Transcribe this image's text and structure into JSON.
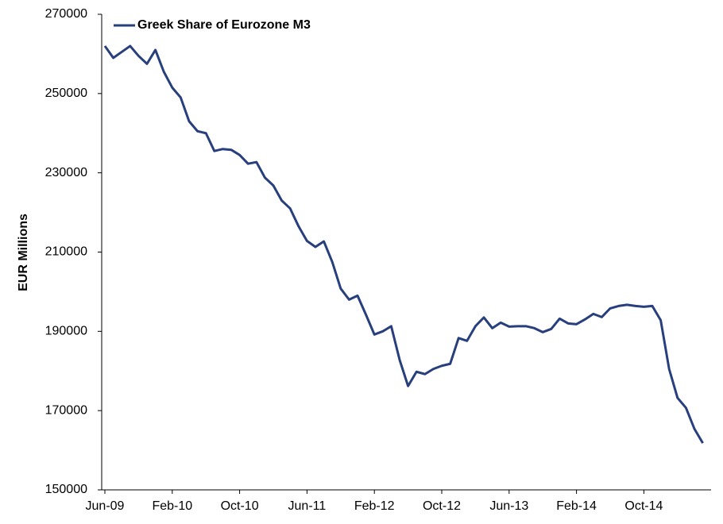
{
  "chart_data": {
    "type": "line",
    "y_label": "EUR Millions",
    "categories": [
      "Jun-09",
      null,
      null,
      null,
      null,
      null,
      null,
      null,
      "Feb-10",
      null,
      null,
      null,
      null,
      null,
      null,
      null,
      "Oct-10",
      null,
      null,
      null,
      null,
      null,
      null,
      null,
      "Jun-11",
      null,
      null,
      null,
      null,
      null,
      null,
      null,
      "Feb-12",
      null,
      null,
      null,
      null,
      null,
      null,
      null,
      "Oct-12",
      null,
      null,
      null,
      null,
      null,
      null,
      null,
      "Jun-13",
      null,
      null,
      null,
      null,
      null,
      null,
      null,
      "Feb-14",
      null,
      null,
      null,
      null,
      null,
      null,
      null,
      "Oct-14",
      null,
      null,
      null,
      null,
      null,
      null,
      null
    ],
    "series": [
      {
        "name": "Greek Share of Eurozone M3",
        "color": "#283f7d",
        "values": [
          262000,
          259000,
          260500,
          262000,
          259500,
          257500,
          261000,
          255500,
          251500,
          249000,
          243000,
          240500,
          240000,
          235500,
          236000,
          235800,
          234500,
          232300,
          232700,
          228800,
          226800,
          223000,
          221000,
          216500,
          212800,
          211300,
          212700,
          207500,
          200800,
          198000,
          199000,
          194200,
          189200,
          190000,
          191300,
          182800,
          176200,
          179800,
          179200,
          180500,
          181300,
          181800,
          188300,
          187600,
          191300,
          193500,
          190800,
          192200,
          191200,
          191300,
          191300,
          190800,
          189800,
          190600,
          193200,
          192000,
          191800,
          193000,
          194400,
          193600,
          195800,
          196400,
          196700,
          196400,
          196200,
          196400,
          192800,
          180500,
          173200,
          170700,
          165400,
          161800
        ]
      }
    ],
    "ylim": [
      150000,
      270000
    ],
    "yticks": [
      150000,
      170000,
      190000,
      210000,
      230000,
      250000,
      270000
    ],
    "legend": "top-left",
    "grid": false
  }
}
